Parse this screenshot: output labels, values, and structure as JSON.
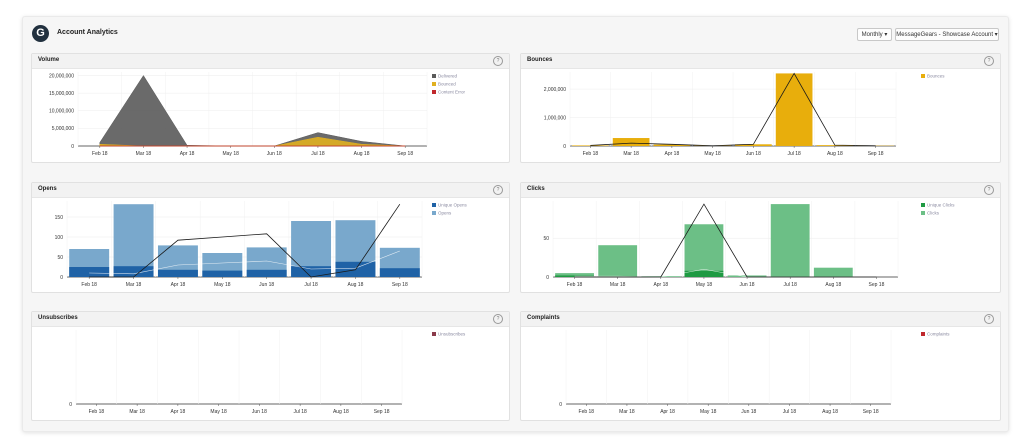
{
  "header": {
    "title": "Account Analytics",
    "logo_glyph": "G",
    "period_label": "Monthly ▾",
    "account_label": "MessageGears - Showcase Account ▾"
  },
  "help_glyph": "?",
  "panels": {
    "volume": {
      "title": "Volume",
      "chart_data": {
        "type": "area",
        "categories": [
          "Feb 18",
          "Mar 18",
          "Apr 18",
          "May 18",
          "Jun 18",
          "Jul 18",
          "Aug 18",
          "Sep 18"
        ],
        "y_ticks": [
          "20,000,000",
          "15,000,000",
          "10,000,000",
          "5,000,000",
          "0"
        ],
        "ylim": [
          0,
          21000000
        ],
        "series": [
          {
            "name": "Delivered",
            "color": "#5a5a5a",
            "values": [
              1000000,
              20000000,
              200000,
              0,
              0,
              3800000,
              1300000,
              0
            ]
          },
          {
            "name": "Bounced",
            "color": "#e0b020",
            "values": [
              500000,
              0,
              0,
              0,
              0,
              2500000,
              500000,
              0
            ]
          },
          {
            "name": "Content Error",
            "color": "#c0282d",
            "values": [
              0,
              0,
              0,
              0,
              0,
              0,
              0,
              0
            ]
          }
        ]
      }
    },
    "bounces": {
      "title": "Bounces",
      "chart_data": {
        "type": "bar",
        "categories": [
          "Feb 18",
          "Mar 18",
          "Apr 18",
          "May 18",
          "Jun 18",
          "Jul 18",
          "Aug 18",
          "Sep 18"
        ],
        "y_ticks": [
          "2,000,000",
          "1,000,000",
          "0"
        ],
        "ylim": [
          0,
          2600000
        ],
        "series": [
          {
            "name": "Bounces",
            "color": "#e8ae0c",
            "values": [
              20000,
              280000,
              50000,
              10000,
              60000,
              2550000,
              30000,
              10000
            ]
          }
        ],
        "line_values": [
          20000,
          100000,
          60000,
          10000,
          60000,
          2550000,
          30000,
          10000
        ]
      }
    },
    "opens": {
      "title": "Opens",
      "chart_data": {
        "type": "bar",
        "categories": [
          "Feb 18",
          "Mar 18",
          "Apr 18",
          "May 18",
          "Jun 18",
          "Jul 18",
          "Aug 18",
          "Sep 18"
        ],
        "y_ticks": [
          "150",
          "100",
          "50",
          "0"
        ],
        "ylim": [
          0,
          190
        ],
        "series": [
          {
            "name": "Unique Opens",
            "color": "#1f62a6",
            "values": [
              25,
              27,
              18,
              16,
              18,
              27,
              38,
              22
            ]
          },
          {
            "name": "Opens",
            "color": "#79a8cc",
            "values": [
              70,
              182,
              79,
              60,
              74,
              140,
              142,
              73
            ]
          }
        ],
        "line_values": [
          0,
          0,
          92,
          100,
          108,
          0,
          18,
          182
        ],
        "thin_line_values": [
          10,
          8,
          30,
          35,
          40,
          20,
          22,
          65
        ]
      }
    },
    "clicks": {
      "title": "Clicks",
      "chart_data": {
        "type": "bar",
        "categories": [
          "Feb 18",
          "Mar 18",
          "Apr 18",
          "May 18",
          "Jun 18",
          "Jul 18",
          "Aug 18",
          "Sep 18"
        ],
        "y_ticks": [
          "50",
          "0"
        ],
        "ylim": [
          0,
          98
        ],
        "series": [
          {
            "name": "Unique Clicks",
            "color": "#1f9a43",
            "values": [
              2,
              1,
              0,
              8,
              0,
              0,
              0,
              0
            ]
          },
          {
            "name": "Clicks",
            "color": "#6cbf86",
            "values": [
              5,
              41,
              1,
              68,
              2,
              94,
              12,
              0
            ]
          }
        ],
        "line_values": [
          0,
          0,
          0,
          94,
          0,
          0,
          0,
          0
        ],
        "thin_line_values": [
          1,
          1,
          0,
          10,
          0,
          0,
          0,
          0
        ]
      }
    },
    "unsubscribes": {
      "title": "Unsubscribes",
      "chart_data": {
        "type": "line",
        "categories": [
          "Feb 18",
          "Mar 18",
          "Apr 18",
          "May 18",
          "Jun 18",
          "Jul 18",
          "Aug 18",
          "Sep 18"
        ],
        "y_ticks": [
          "0"
        ],
        "series": [
          {
            "name": "Unsubscribes",
            "color": "#8a3a4a",
            "values": [
              0,
              0,
              0,
              0,
              0,
              0,
              0,
              0
            ]
          }
        ]
      }
    },
    "complaints": {
      "title": "Complaints",
      "chart_data": {
        "type": "line",
        "categories": [
          "Feb 18",
          "Mar 18",
          "Apr 18",
          "May 18",
          "Jun 18",
          "Jul 18",
          "Aug 18",
          "Sep 18"
        ],
        "y_ticks": [
          "0"
        ],
        "series": [
          {
            "name": "Complaints",
            "color": "#c0282d",
            "values": [
              0,
              0,
              0,
              0,
              0,
              0,
              0,
              0
            ]
          }
        ]
      }
    }
  }
}
